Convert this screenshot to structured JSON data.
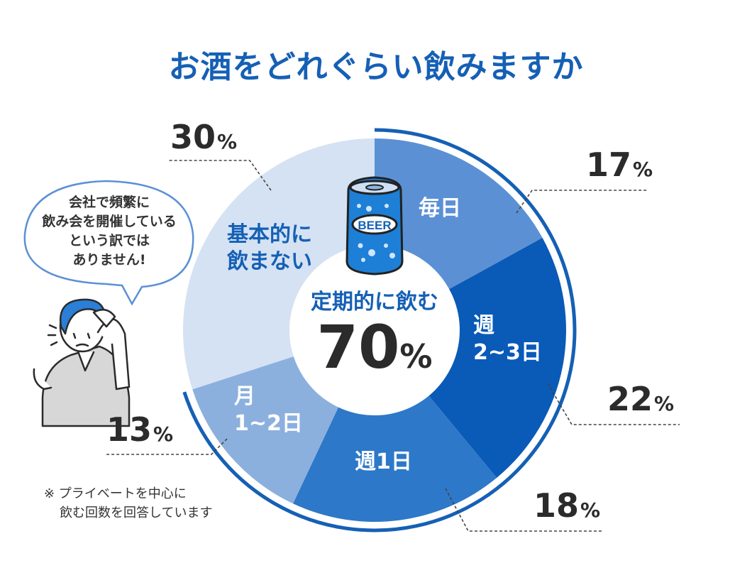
{
  "title": "お酒をどれぐらい飲みますか",
  "colors": {
    "accent": "#1560b5",
    "mainichi": "#5b91d4",
    "shu23": "#0a5ab8",
    "shu1": "#2d78c8",
    "tsuki": "#8cb0de",
    "nomanai": "#d5e2f3"
  },
  "chart_data": {
    "type": "pie",
    "style": "donut",
    "slices": [
      {
        "label": "毎日",
        "value": 17,
        "color": "#5b91d4"
      },
      {
        "label": "週\n2~3日",
        "value": 22,
        "color": "#0a5ab8"
      },
      {
        "label": "週1日",
        "value": 18,
        "color": "#2d78c8"
      },
      {
        "label": "月\n1~2日",
        "value": 13,
        "color": "#8cb0de"
      },
      {
        "label": "基本的に\n飲まない",
        "value": 30,
        "color": "#d5e2f3"
      }
    ],
    "percent_labels": [
      "17",
      "22",
      "18",
      "13",
      "30"
    ],
    "unit": "%",
    "center": {
      "label": "定期的に飲む",
      "value": "70",
      "unit": "%"
    }
  },
  "slice_labels": {
    "mainichi": [
      "毎日"
    ],
    "shu23": [
      "週",
      "2~3日"
    ],
    "shu1": [
      "週1日"
    ],
    "tsuki": [
      "月",
      "1~2日"
    ],
    "nomanai": [
      "基本的に",
      "飲まない"
    ]
  },
  "can_label": "BEER",
  "bubble": [
    "会社で頻繁に",
    "飲み会を開催している",
    "という訳では",
    "ありません!"
  ],
  "note": [
    "※ プライベートを中心に",
    "飲む回数を回答しています"
  ]
}
